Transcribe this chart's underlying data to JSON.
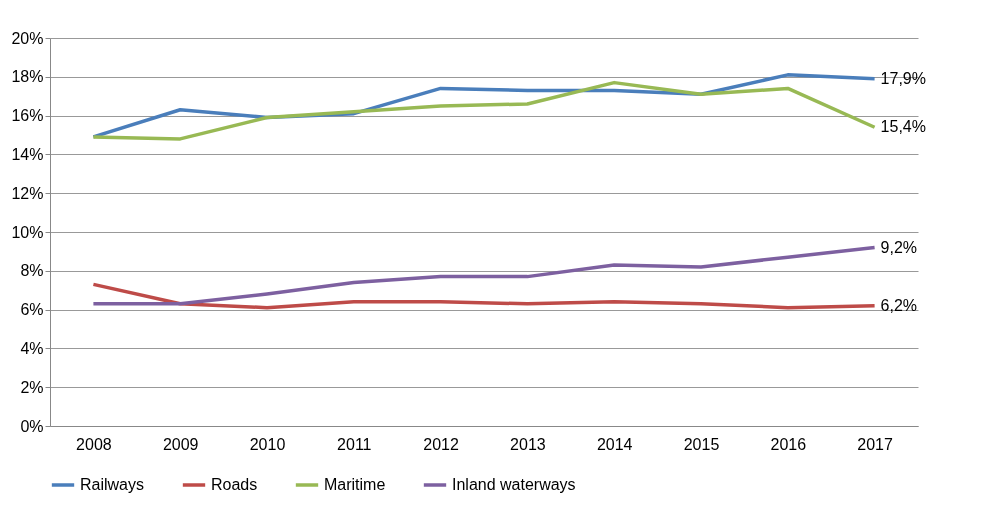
{
  "chart_data": {
    "type": "line",
    "categories": [
      "2008",
      "2009",
      "2010",
      "2011",
      "2012",
      "2013",
      "2014",
      "2015",
      "2016",
      "2017"
    ],
    "series": [
      {
        "name": "Railways",
        "color": "#4a7ebb",
        "values": [
          14.9,
          16.3,
          15.9,
          16.1,
          17.4,
          17.3,
          17.3,
          17.1,
          18.1,
          17.9
        ],
        "value_labels": [
          null,
          null,
          null,
          null,
          null,
          null,
          null,
          null,
          null,
          "17,9%"
        ]
      },
      {
        "name": "Roads",
        "color": "#be4b48",
        "values": [
          7.3,
          6.3,
          6.1,
          6.4,
          6.4,
          6.3,
          6.4,
          6.3,
          6.1,
          6.2
        ],
        "value_labels": [
          null,
          null,
          null,
          null,
          null,
          null,
          null,
          null,
          null,
          "6,2%"
        ]
      },
      {
        "name": "Maritime",
        "color": "#98b954",
        "values": [
          14.9,
          14.8,
          15.9,
          16.2,
          16.5,
          16.6,
          17.7,
          17.1,
          17.4,
          15.4
        ],
        "value_labels": [
          null,
          null,
          null,
          null,
          null,
          null,
          null,
          null,
          null,
          "15,4%"
        ]
      },
      {
        "name": "Inland waterways",
        "color": "#7d60a0",
        "values": [
          6.3,
          6.3,
          6.8,
          7.4,
          7.7,
          7.7,
          8.3,
          8.2,
          8.7,
          9.2
        ],
        "value_labels": [
          null,
          null,
          null,
          null,
          null,
          null,
          null,
          null,
          null,
          "9,2%"
        ]
      }
    ],
    "ylim": [
      0,
      20
    ],
    "yticks": [
      {
        "value": 0,
        "label": "0%"
      },
      {
        "value": 2,
        "label": "2%"
      },
      {
        "value": 4,
        "label": "4%"
      },
      {
        "value": 6,
        "label": "6%"
      },
      {
        "value": 8,
        "label": "8%"
      },
      {
        "value": 10,
        "label": "10%"
      },
      {
        "value": 12,
        "label": "12%"
      },
      {
        "value": 14,
        "label": "14%"
      },
      {
        "value": 16,
        "label": "16%"
      },
      {
        "value": 18,
        "label": "18%"
      },
      {
        "value": 20,
        "label": "20%"
      }
    ],
    "grid": "y",
    "legend": "bottom",
    "marker": "none",
    "line_style": "solid"
  }
}
